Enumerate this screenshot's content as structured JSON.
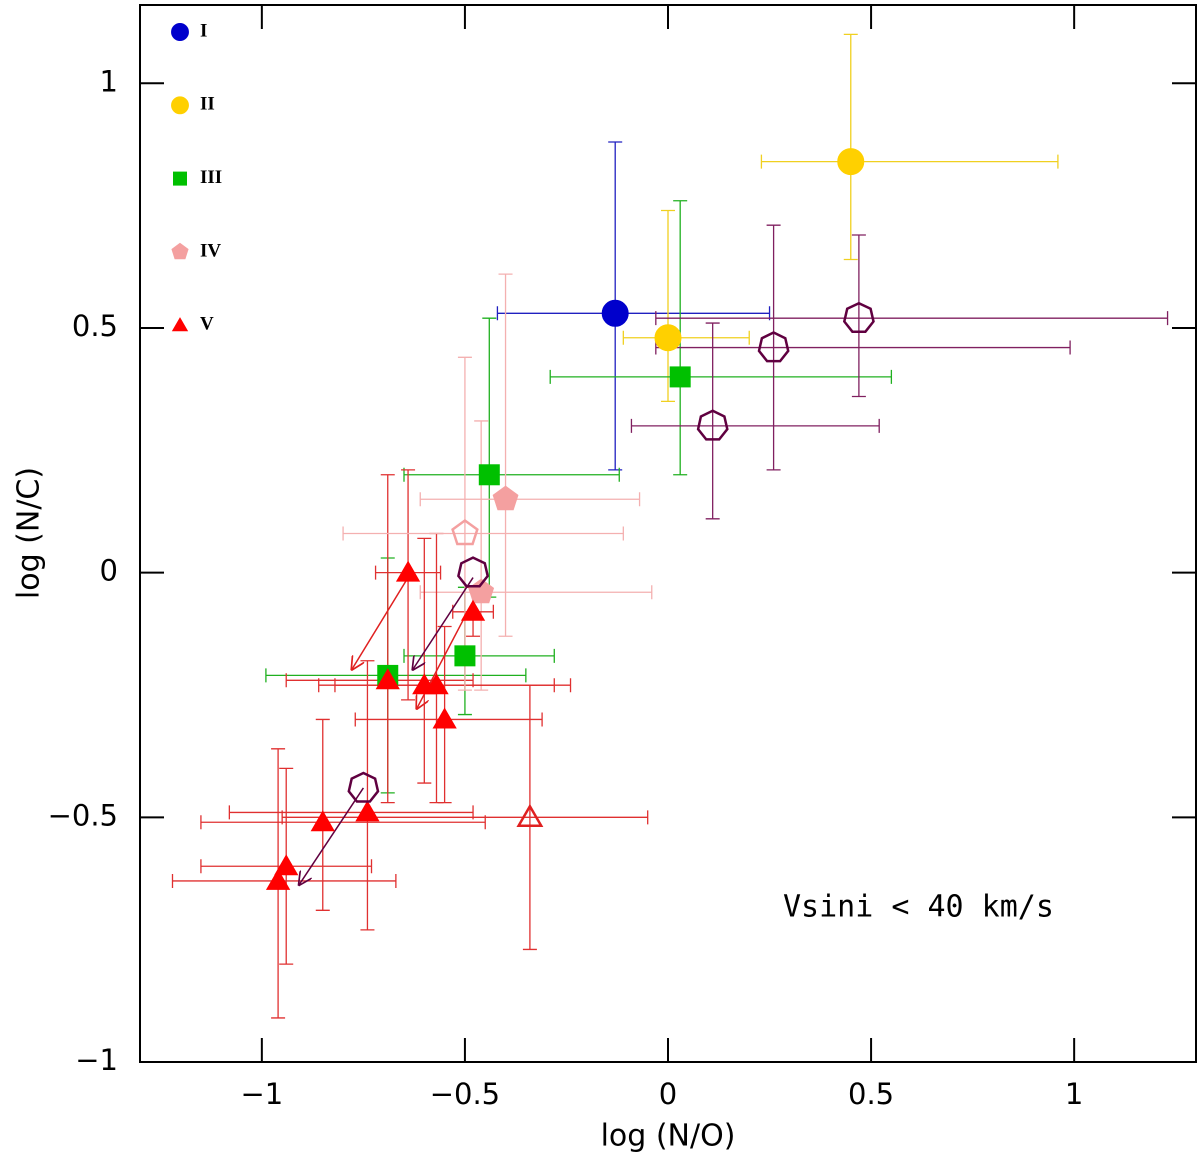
{
  "chart_data": {
    "type": "scatter",
    "xlabel": "log (N/O)",
    "ylabel": "log (N/C)",
    "annotation": "Vsini < 40 km/s",
    "xlim": [
      -1.3,
      1.3
    ],
    "ylim": [
      -1,
      1.16
    ],
    "xticks": [
      {
        "value": -1,
        "label": "−1"
      },
      {
        "value": -0.5,
        "label": "−0.5"
      },
      0,
      0.5,
      1
    ],
    "yticks": [
      {
        "value": -1,
        "label": "−1"
      },
      {
        "value": -0.5,
        "label": "−0.5"
      },
      0,
      0.5,
      1
    ],
    "legend": "upper left",
    "series": [
      {
        "name": "I",
        "color": "#0000cc",
        "bar_color": "#2020c0",
        "marker": "circle",
        "filled": true,
        "x": [
          -0.13
        ],
        "values": [
          0.53
        ],
        "xerr": [
          [
            0.29,
            0.38
          ]
        ],
        "yerr": [
          [
            0.32,
            0.35
          ]
        ]
      },
      {
        "name": "II",
        "color": "#ffd000",
        "bar_color": "#f0d020",
        "marker": "circle",
        "filled": true,
        "x": [
          0.45,
          0.0
        ],
        "values": [
          0.84,
          0.48
        ],
        "xerr": [
          [
            0.22,
            0.51
          ],
          [
            0.11,
            0.2
          ]
        ],
        "yerr": [
          [
            0.2,
            0.26
          ],
          [
            0.13,
            0.26
          ]
        ]
      },
      {
        "name": "III",
        "color": "#00c000",
        "bar_color": "#20b020",
        "marker": "square",
        "filled": true,
        "x": [
          0.03,
          -0.44,
          -0.5,
          -0.69
        ],
        "values": [
          0.4,
          0.2,
          -0.17,
          -0.21
        ],
        "xerr": [
          [
            0.32,
            0.52
          ],
          [
            0.21,
            0.32
          ],
          [
            0.15,
            0.22
          ],
          [
            0.3,
            0.34
          ]
        ],
        "yerr": [
          [
            0.2,
            0.36
          ],
          [
            0.25,
            0.32
          ],
          [
            0.12,
            0.14
          ],
          [
            0.24,
            0.24
          ]
        ]
      },
      {
        "name": "IV",
        "color": "#f4a0a0",
        "bar_color": "#f4b0b0",
        "marker": "pentagon",
        "filled": true,
        "x": [
          -0.4,
          -0.46
        ],
        "values": [
          0.15,
          -0.04
        ],
        "xerr": [
          [
            0.21,
            0.33
          ],
          [
            0.15,
            0.42
          ]
        ],
        "yerr": [
          [
            0.28,
            0.46
          ],
          [
            0.2,
            0.35
          ]
        ]
      },
      {
        "name": "V",
        "color": "#ff0000",
        "bar_color": "#e03030",
        "marker": "triangle",
        "filled": true,
        "x": [
          -0.64,
          -0.48,
          -0.69,
          -0.6,
          -0.57,
          -0.55,
          -0.74,
          -0.85,
          -0.94,
          -0.96
        ],
        "values": [
          0.0,
          -0.08,
          -0.22,
          -0.23,
          -0.23,
          -0.3,
          -0.49,
          -0.51,
          -0.6,
          -0.63
        ],
        "xerr": [
          [
            0.08,
            0.08
          ],
          [
            0.05,
            0.05
          ],
          [
            0.25,
            0.21
          ],
          [
            0.26,
            0.32
          ],
          [
            0.25,
            0.33
          ],
          [
            0.22,
            0.24
          ],
          [
            0.34,
            0.26
          ],
          [
            0.3,
            0.4
          ],
          [
            0.21,
            0.21
          ],
          [
            0.26,
            0.29
          ]
        ],
        "yerr": [
          [
            0.26,
            0.21
          ],
          [
            0.05,
            0.05
          ],
          [
            0.25,
            0.42
          ],
          [
            0.2,
            0.3
          ],
          [
            0.24,
            0.31
          ],
          [
            0.17,
            0.19
          ],
          [
            0.24,
            0.31
          ],
          [
            0.18,
            0.21
          ],
          [
            0.2,
            0.2
          ],
          [
            0.28,
            0.27
          ]
        ]
      },
      {
        "color": "#f4a0a0",
        "bar_color": "#f4b0b0",
        "marker": "pentagon",
        "filled": false,
        "x": [
          -0.5
        ],
        "values": [
          0.08
        ],
        "xerr": [
          [
            0.3,
            0.39
          ]
        ],
        "yerr": [
          [
            0.32,
            0.36
          ]
        ]
      },
      {
        "color": "#e02020",
        "bar_color": "#e03030",
        "marker": "triangle",
        "filled": false,
        "x": [
          -0.34
        ],
        "values": [
          -0.5
        ],
        "xerr": [
          [
            0.61,
            0.29
          ]
        ],
        "yerr": [
          [
            0.27,
            0.27
          ]
        ]
      },
      {
        "color": "#600040",
        "bar_color": "#802060",
        "marker": "heptagon",
        "filled": false,
        "x": [
          0.47,
          0.26,
          0.11,
          -0.48,
          -0.75
        ],
        "values": [
          0.52,
          0.46,
          0.3,
          0.0,
          -0.44
        ],
        "xerr": [
          [
            0.5,
            0.76
          ],
          [
            0.29,
            0.73
          ],
          [
            0.2,
            0.41
          ],
          null,
          null
        ],
        "yerr": [
          [
            0.16,
            0.17
          ],
          [
            0.25,
            0.25
          ],
          [
            0.19,
            0.21
          ],
          null,
          null
        ]
      }
    ],
    "arrows": [
      {
        "color": "#e02020",
        "from": [
          -0.64,
          -0.01
        ],
        "to": [
          -0.78,
          -0.2
        ]
      },
      {
        "color": "#600040",
        "from": [
          -0.48,
          -0.01
        ],
        "to": [
          -0.63,
          -0.2
        ]
      },
      {
        "color": "#e02020",
        "from": [
          -0.5,
          -0.09
        ],
        "to": [
          -0.62,
          -0.28
        ]
      },
      {
        "color": "#600040",
        "from": [
          -0.75,
          -0.44
        ],
        "to": [
          -0.91,
          -0.64
        ]
      }
    ]
  }
}
